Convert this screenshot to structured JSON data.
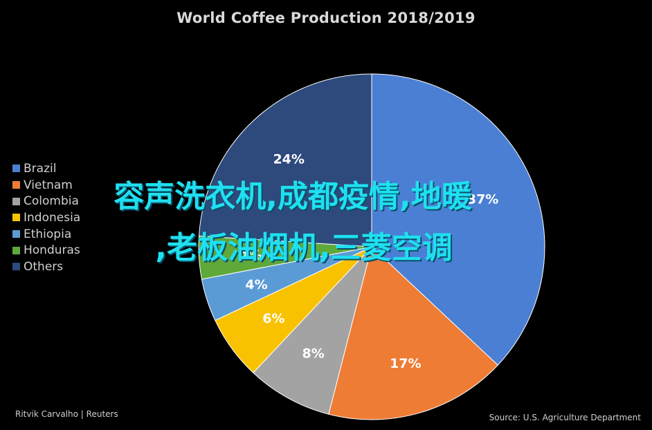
{
  "chart_data": {
    "type": "pie",
    "title": "World Coffee Production 2018/2019",
    "legend_position": "left",
    "slices": [
      {
        "label": "Brazil",
        "value": 37,
        "color": "#4a7fd4"
      },
      {
        "label": "Vietnam",
        "value": 17,
        "color": "#ee7c35"
      },
      {
        "label": "Colombia",
        "value": 8,
        "color": "#a3a3a3"
      },
      {
        "label": "Indonesia",
        "value": 6,
        "color": "#f9c200"
      },
      {
        "label": "Ethiopia",
        "value": 4,
        "color": "#5b9bd5"
      },
      {
        "label": "Honduras",
        "value": 4,
        "color": "#5fa83a"
      },
      {
        "label": "Others",
        "value": 24,
        "color": "#2e4a7d"
      }
    ],
    "data_labels": [
      "37%",
      "17%",
      "8%",
      "6%",
      "4%",
      "4%",
      "24%"
    ]
  },
  "overlay_text": {
    "line1": "容声洗衣机,成都疫情,地暖",
    "line2": ",老板油烟机,三菱空调"
  },
  "credit": "Ritvik Carvalho | Reuters",
  "source": "Source: U.S. Agriculture Department"
}
